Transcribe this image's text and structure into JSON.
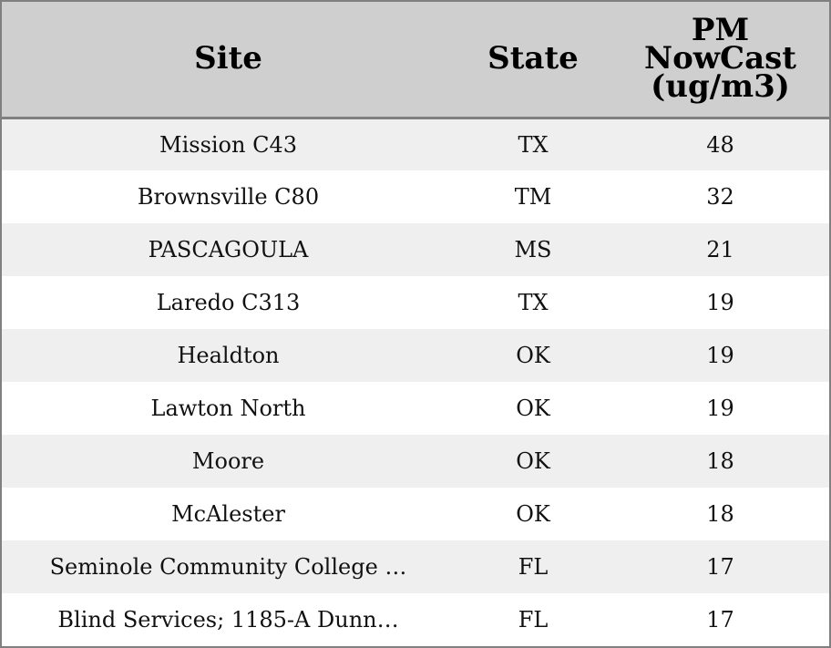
{
  "chart_data": {
    "type": "table",
    "columns": [
      {
        "label": "Site"
      },
      {
        "label": "State"
      },
      {
        "label_lines": [
          "PM",
          "NowCast",
          "(ug/m3)"
        ]
      }
    ],
    "rows": [
      {
        "site": "Mission C43",
        "state": "TX",
        "pm": "48"
      },
      {
        "site": "Brownsville C80",
        "state": "TM",
        "pm": "32"
      },
      {
        "site": "PASCAGOULA",
        "state": "MS",
        "pm": "21"
      },
      {
        "site": "Laredo C313",
        "state": "TX",
        "pm": "19"
      },
      {
        "site": "Healdton",
        "state": "OK",
        "pm": "19"
      },
      {
        "site": "Lawton North",
        "state": "OK",
        "pm": "19"
      },
      {
        "site": "Moore",
        "state": "OK",
        "pm": "18"
      },
      {
        "site": "McAlester",
        "state": "OK",
        "pm": "18"
      },
      {
        "site": "Seminole Community College …",
        "state": "FL",
        "pm": "17"
      },
      {
        "site": "Blind Services; 1185-A Dunn…",
        "state": "FL",
        "pm": "17"
      }
    ]
  }
}
